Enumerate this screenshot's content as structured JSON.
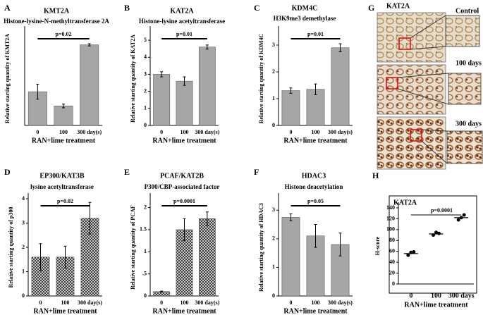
{
  "chart_data": [
    {
      "type": "bar",
      "label": "A",
      "title": "KMT2A",
      "subtitle": "Histone-lysine-N-methyltransferase  2A",
      "y_label": "Relative starting quantity  of KMT2A",
      "x_label": "RAN+lime treatment",
      "annotation": "p=0.02",
      "categories": [
        "0",
        "100",
        "300 day(s)"
      ],
      "values": [
        0.9,
        0.52,
        2.15
      ],
      "errors": [
        0.2,
        0.05,
        0.03
      ],
      "color": "#a6a6a6",
      "ylim": [
        0,
        2.5
      ]
    },
    {
      "type": "bar",
      "label": "B",
      "title": "KAT2A",
      "subtitle": "Histone-lysine acetyltransferase",
      "y_label": "Relative starting quantity  of KAT2A",
      "x_label": "RAN+lime treatment",
      "annotation": "p=0.01",
      "categories": [
        "0",
        "100",
        "300 day(s)"
      ],
      "values": [
        3.0,
        2.6,
        4.6
      ],
      "errors": [
        0.15,
        0.25,
        0.12
      ],
      "color": "#a6a6a6",
      "ylim": [
        0,
        5.5
      ],
      "yticks": [
        0,
        1,
        2,
        3,
        4,
        5
      ]
    },
    {
      "type": "bar",
      "label": "C",
      "title": "KDM4C",
      "subtitle": "H3K9me3 demethylase",
      "y_label": "Relative starting quantity  of KDM4C",
      "x_label": "RAN+lime treatment",
      "annotation": "p=0.01",
      "categories": [
        "0",
        "100",
        "300 day(s)"
      ],
      "values": [
        1.3,
        1.35,
        2.9
      ],
      "errors": [
        0.1,
        0.2,
        0.15
      ],
      "color": "#a6a6a6",
      "ylim": [
        0,
        3.5
      ],
      "yticks": [
        0,
        1,
        2,
        3
      ]
    },
    {
      "type": "bar",
      "label": "D",
      "title": "EP300/KAT3B",
      "subtitle": "lysine acetyltransferase",
      "y_label": "Relative starting quantity  of p300",
      "x_label": "RAN+lime treatment",
      "annotation": "p=0.02",
      "categories": [
        "0",
        "100",
        "300 day(s)"
      ],
      "values": [
        1.6,
        1.6,
        3.2
      ],
      "errors": [
        0.55,
        0.45,
        0.65
      ],
      "color": "#505050",
      "pattern": "crosshatch",
      "ylim": [
        0,
        4
      ],
      "yticks": [
        0,
        1,
        2,
        3,
        4
      ]
    },
    {
      "type": "bar",
      "label": "E",
      "title": "PCAF/KAT2B",
      "subtitle": "P300/CBP-associated factor",
      "y_label": "Relative starting quantity  of PCAF",
      "x_label": "RAN+lime treatment",
      "annotation": "p=0.0001",
      "categories": [
        "0",
        "100",
        "300 day(s)"
      ],
      "values": [
        0.1,
        1.5,
        1.75
      ],
      "errors": [
        0.01,
        0.25,
        0.15
      ],
      "color": "#505050",
      "pattern": "crosshatch",
      "ylim": [
        0,
        2.2
      ],
      "yticks": [
        0,
        {
          "value": 0.5,
          "label": ".5"
        },
        1,
        1.5,
        2
      ]
    },
    {
      "type": "bar",
      "label": "F",
      "title": "HDAC3",
      "subtitle": "Histone deacetylation",
      "y_label": "Relative starting quantity  of HDAC3",
      "x_label": "RAN+lime treatment",
      "annotation": "p=0.05",
      "categories": [
        "0",
        "100",
        "300 day(s)"
      ],
      "values": [
        2.75,
        2.1,
        1.8
      ],
      "errors": [
        0.12,
        0.4,
        0.4
      ],
      "color": "#a6a6a6",
      "ylim": [
        0,
        3.4
      ],
      "yticks": [
        0,
        1,
        2,
        3
      ]
    },
    {
      "type": "dot",
      "label": "H",
      "title": "KAT2A",
      "y_label": "H-score",
      "x_label": "RAN+lime treatment",
      "annotation": "p=0.0001",
      "categories": [
        "0",
        "100",
        "300 days"
      ],
      "points": [
        [
          53,
          58,
          59
        ],
        [
          90,
          95,
          93
        ],
        [
          118,
          122,
          127
        ]
      ],
      "means": [
        56,
        92,
        122
      ],
      "color": "#000000",
      "ylim": [
        0,
        140
      ],
      "yticks": [
        0,
        20,
        40,
        60,
        80,
        100,
        120,
        140
      ]
    }
  ],
  "image_panel": {
    "label": "G",
    "title": "KAT2A",
    "captions": [
      "Control",
      "100 days",
      "300 days"
    ]
  }
}
